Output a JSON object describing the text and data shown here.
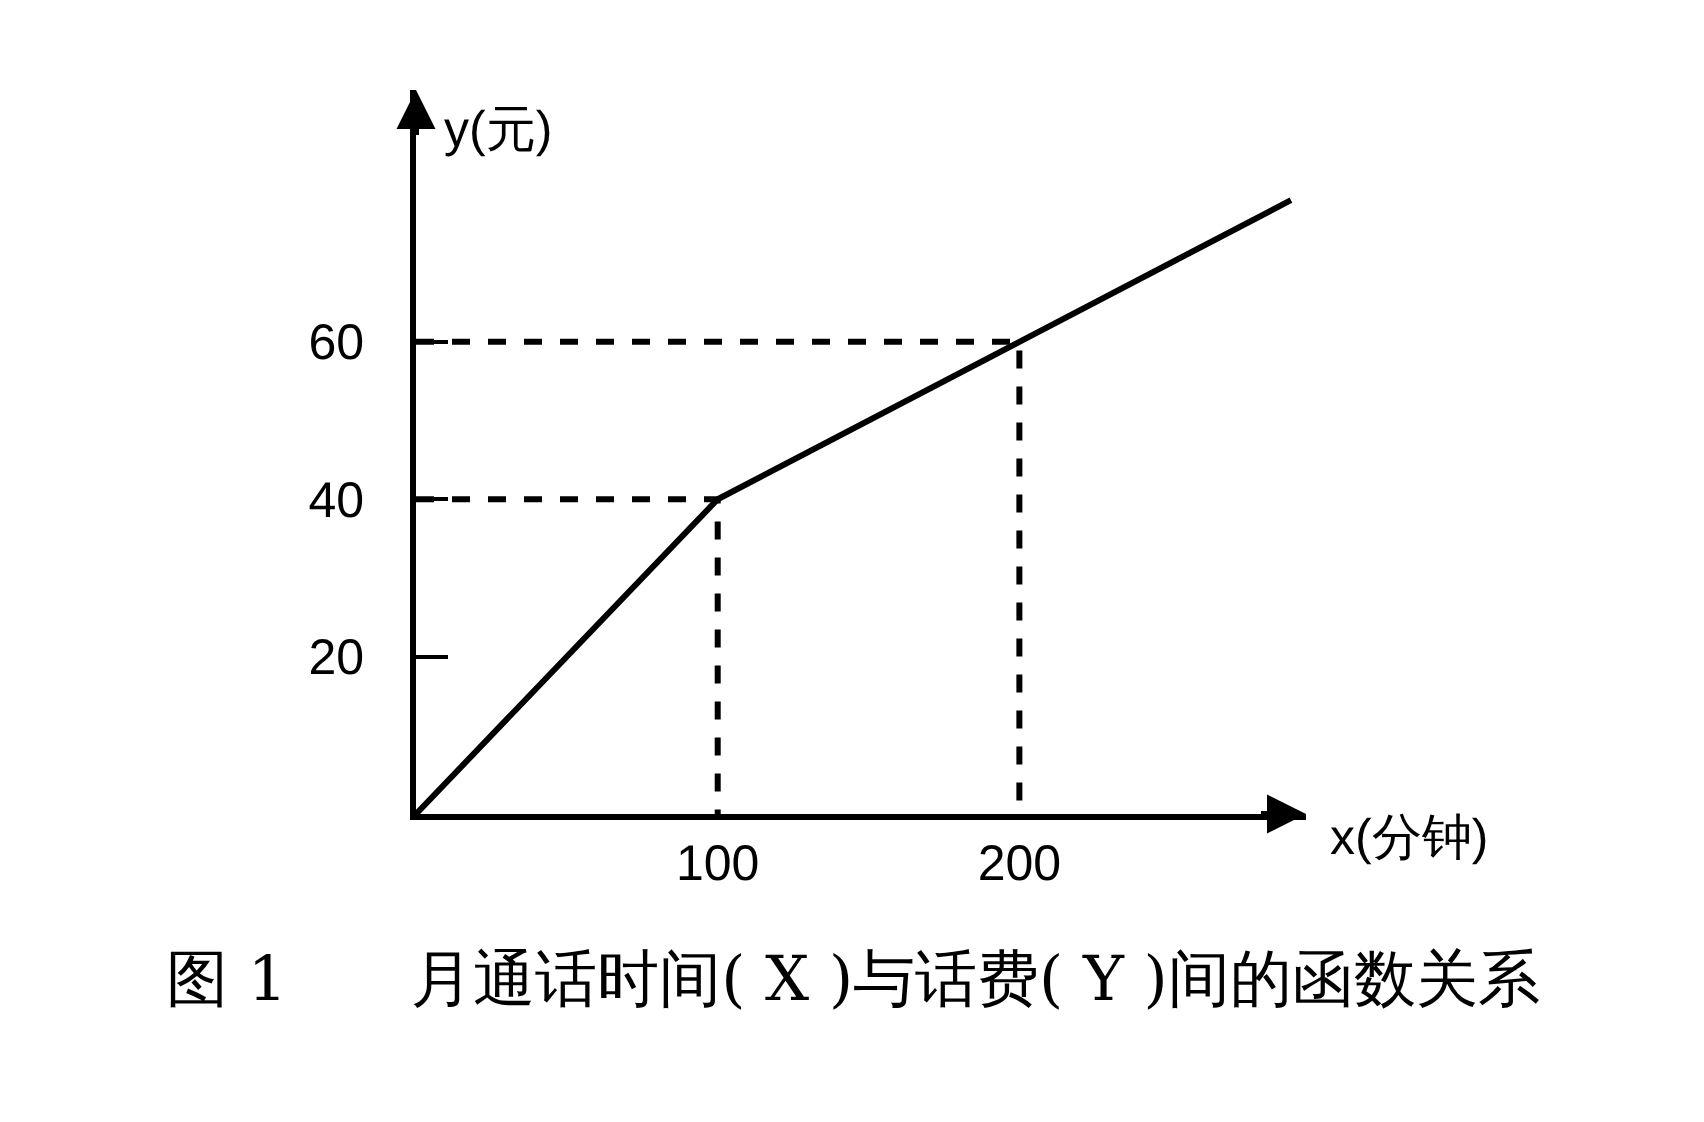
{
  "chart_data": {
    "type": "line",
    "xlabel": "x(分钟)",
    "ylabel": "y(元)",
    "annotations": [
      "图 1　　月通话时间( X )与话费( Y )间的函数关系"
    ],
    "xlim": [
      0,
      295
    ],
    "ylim": [
      0,
      92
    ],
    "xticks": [
      100,
      200
    ],
    "yticks": [
      20,
      40,
      60
    ],
    "series": [
      {
        "color": "#000000",
        "x": [
          0,
          100,
          200,
          290
        ],
        "values": [
          0,
          40,
          60,
          78
        ]
      },
      {
        "color": "#000000",
        "x": [
          0,
          100,
          100
        ],
        "values": [
          40,
          40,
          0
        ],
        "line_style": "dashed"
      },
      {
        "color": "#000000",
        "x": [
          0,
          200,
          200
        ],
        "values": [
          60,
          60,
          0
        ],
        "line_style": "dashed"
      }
    ]
  }
}
